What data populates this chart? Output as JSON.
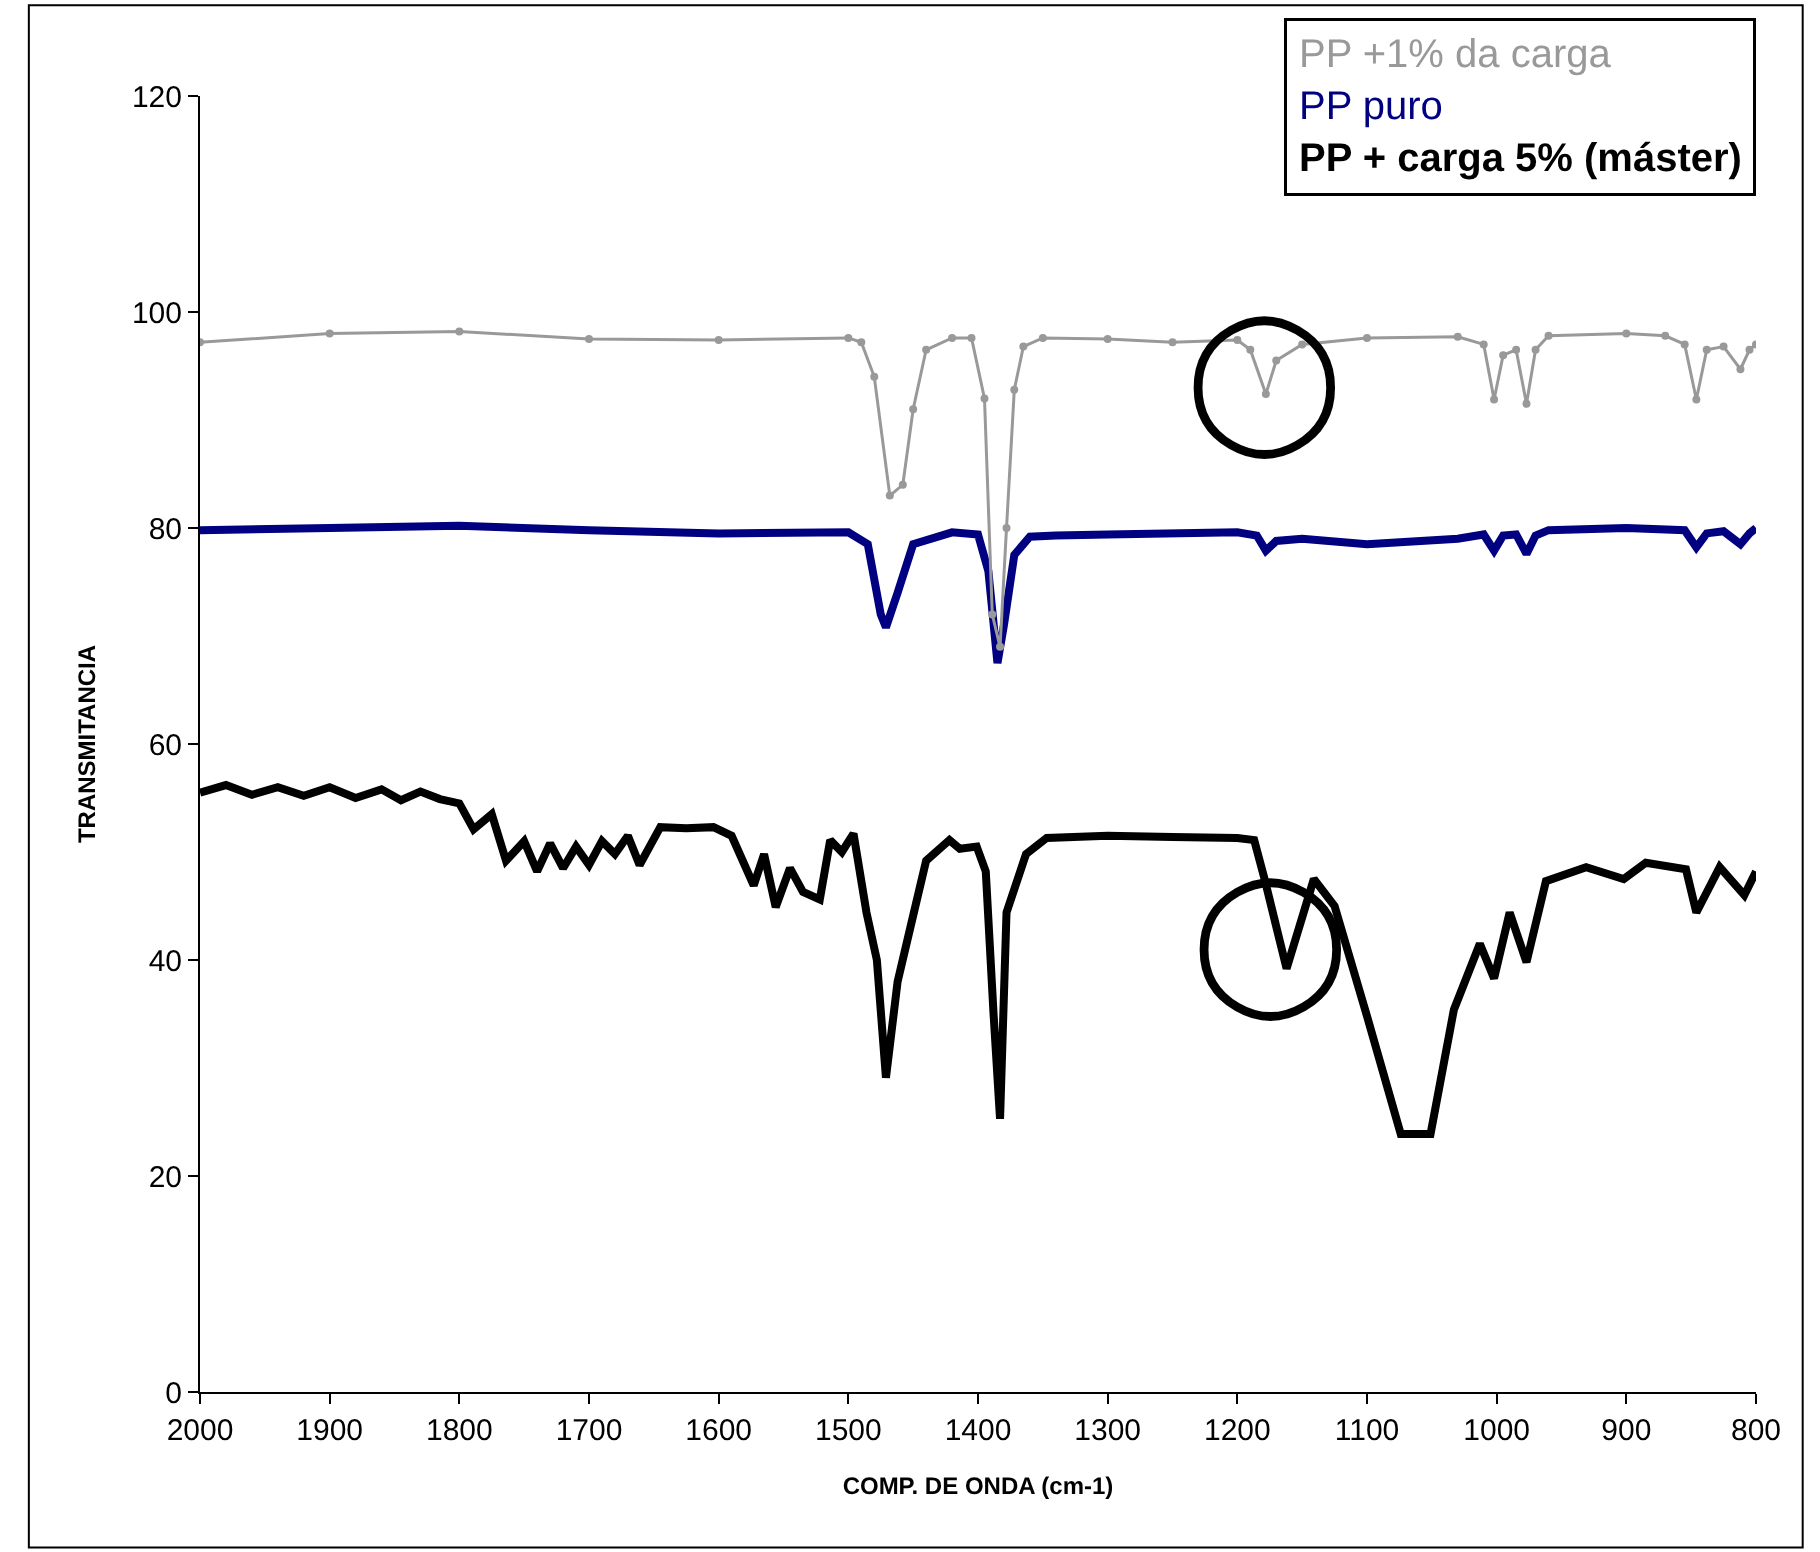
{
  "chart_data": {
    "type": "line",
    "xlabel": "COMP. DE ONDA (cm-1)",
    "ylabel": "TRANSMITANCIA",
    "xlim": [
      2000,
      800
    ],
    "xticks": [
      2000,
      1900,
      1800,
      1700,
      1600,
      1500,
      1400,
      1300,
      1200,
      1100,
      1000,
      900,
      800
    ],
    "ylim": [
      0,
      120
    ],
    "yticks": [
      0,
      20,
      40,
      60,
      80,
      100,
      120
    ],
    "legend": "top right",
    "series": [
      {
        "name": "PP +1% da carga",
        "color": "#999999",
        "marker": "circle",
        "x": [
          2000,
          1900,
          1800,
          1700,
          1600,
          1500,
          1490,
          1480,
          1468,
          1458,
          1450,
          1440,
          1420,
          1405,
          1395,
          1389,
          1383,
          1378,
          1372,
          1365,
          1350,
          1300,
          1250,
          1200,
          1190,
          1178,
          1170,
          1150,
          1100,
          1030,
          1010,
          1002,
          995,
          985,
          977,
          970,
          960,
          900,
          870,
          855,
          846,
          838,
          825,
          812,
          805,
          800
        ],
        "values": [
          97.2,
          98,
          98.2,
          97.5,
          97.4,
          97.6,
          97.2,
          94,
          83,
          84,
          91,
          96.5,
          97.6,
          97.6,
          92,
          72,
          69,
          80,
          92.8,
          96.8,
          97.6,
          97.5,
          97.2,
          97.4,
          96.5,
          92.4,
          95.5,
          97,
          97.6,
          97.7,
          97,
          91.9,
          96,
          96.5,
          91.5,
          96.5,
          97.8,
          98,
          97.8,
          97,
          91.9,
          96.5,
          96.8,
          94.7,
          96.5,
          97
        ]
      },
      {
        "name": "PP puro",
        "color": "#000080",
        "marker": "none",
        "x": [
          2000,
          1900,
          1800,
          1700,
          1600,
          1500,
          1485,
          1475,
          1471,
          1462,
          1450,
          1420,
          1400,
          1392,
          1385,
          1380,
          1372,
          1360,
          1340,
          1300,
          1200,
          1185,
          1178,
          1170,
          1150,
          1100,
          1030,
          1010,
          1002,
          995,
          985,
          977,
          970,
          960,
          900,
          855,
          846,
          838,
          825,
          812,
          805,
          800
        ],
        "values": [
          79.8,
          80,
          80.2,
          79.8,
          79.5,
          79.6,
          78.5,
          72,
          70.8,
          74,
          78.5,
          79.6,
          79.4,
          76,
          67.5,
          71,
          77.5,
          79.2,
          79.3,
          79.4,
          79.6,
          79.3,
          77.9,
          78.8,
          79,
          78.5,
          79,
          79.4,
          77.9,
          79.3,
          79.4,
          77.6,
          79.3,
          79.8,
          80,
          79.8,
          78.2,
          79.5,
          79.7,
          78.5,
          79.5,
          80
        ]
      },
      {
        "name": "PP + carga 5% (máster)",
        "color": "#000000",
        "marker": "none",
        "x": [
          2000,
          1980,
          1960,
          1940,
          1920,
          1900,
          1880,
          1860,
          1845,
          1830,
          1815,
          1800,
          1789,
          1775,
          1764,
          1750,
          1740,
          1730,
          1720,
          1710,
          1700,
          1690,
          1680,
          1670,
          1661,
          1645,
          1625,
          1604,
          1590,
          1573,
          1565,
          1556,
          1545,
          1535,
          1522,
          1514,
          1505,
          1496,
          1486,
          1478,
          1471,
          1462,
          1452,
          1440,
          1422,
          1414,
          1401,
          1394,
          1388,
          1383,
          1378,
          1363,
          1347,
          1300,
          1250,
          1200,
          1187,
          1179,
          1162,
          1141,
          1125,
          1100,
          1074,
          1051,
          1033,
          1013,
          1002,
          990,
          977,
          962,
          931,
          902,
          885,
          854,
          846,
          828,
          809,
          800
        ],
        "values": [
          55.5,
          56.2,
          55.3,
          56,
          55.2,
          56,
          55,
          55.8,
          54.8,
          55.6,
          54.9,
          54.5,
          52.1,
          53.5,
          49.2,
          51,
          48.2,
          50.8,
          48.5,
          50.5,
          48.8,
          51,
          49.8,
          51.5,
          48.8,
          52.3,
          52.2,
          52.3,
          51.5,
          46.9,
          49.8,
          44.9,
          48.5,
          46.3,
          45.6,
          51.1,
          50,
          51.7,
          44.4,
          40,
          29.1,
          38,
          43.1,
          49.2,
          51.1,
          50.3,
          50.5,
          48.2,
          35,
          25.3,
          44.4,
          49.8,
          51.3,
          51.5,
          51.4,
          51.3,
          51.1,
          47.5,
          39.2,
          47.5,
          45,
          34.8,
          23.9,
          23.9,
          35.4,
          41.5,
          38.3,
          44.4,
          39.8,
          47.3,
          48.6,
          47.5,
          49,
          48.4,
          44.4,
          48.6,
          46,
          48.2
        ]
      }
    ],
    "annotations": [
      {
        "text": "◯",
        "x": 1180,
        "y": 94
      },
      {
        "text": "◯",
        "x": 1175,
        "y": 42
      }
    ]
  }
}
